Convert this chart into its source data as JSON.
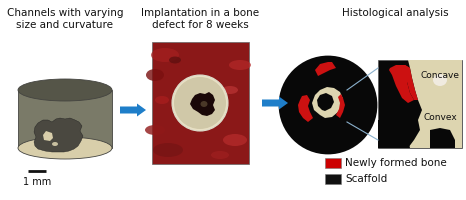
{
  "title_left": "Channels with varying\nsize and curvature",
  "title_middle": "Implantation in a bone\ndefect for 8 weeks",
  "title_right": "Histological analysis",
  "scale_label": "1 mm",
  "legend_items": [
    {
      "label": "Newly formed bone",
      "color": "#cc0000"
    },
    {
      "label": "Scaffold",
      "color": "#111111"
    }
  ],
  "label_concave": "Concave",
  "label_convex": "Convex",
  "arrow_color": "#1f7ec9",
  "bg_color": "#ffffff",
  "scaffold_gray": "#7a7a68",
  "scaffold_dark_side": "#555548",
  "scaffold_top": "#d8ceaa",
  "scaffold_channel": "#4a4840",
  "fig_width": 4.66,
  "fig_height": 2.0,
  "dpi": 100
}
